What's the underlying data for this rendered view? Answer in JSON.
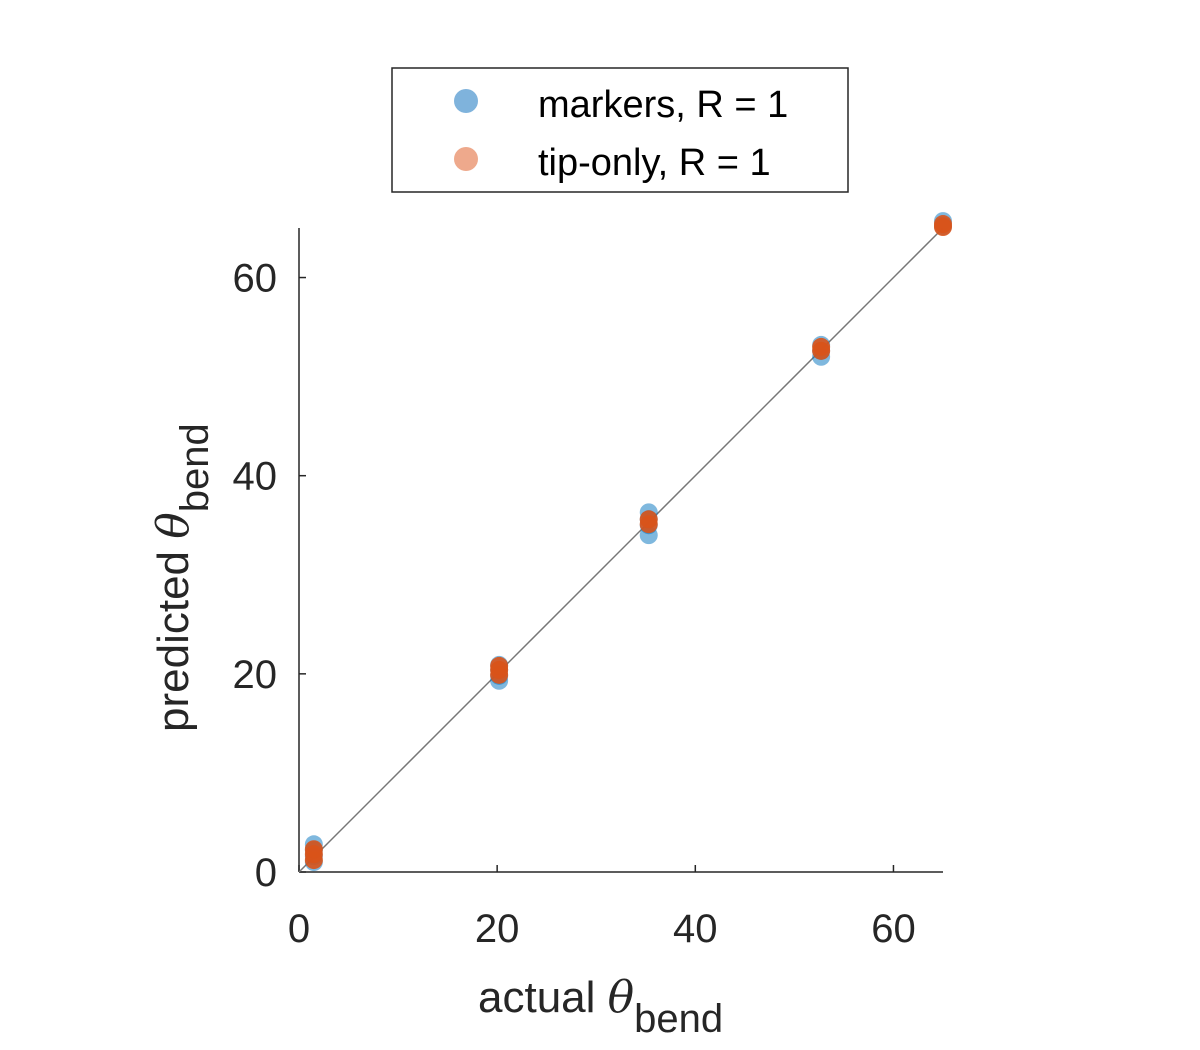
{
  "chart_data": {
    "type": "scatter",
    "xlabel": {
      "main": "actual ",
      "symbol": "θ",
      "subscript": "bend"
    },
    "ylabel": {
      "main": "predicted ",
      "symbol": "θ",
      "subscript": "bend"
    },
    "xlim": [
      0,
      65
    ],
    "ylim": [
      0,
      65
    ],
    "xticks": [
      0,
      20,
      40,
      60
    ],
    "yticks": [
      0,
      20,
      40,
      60
    ],
    "grid": false,
    "legend_position": "top",
    "reference_line": {
      "from": [
        0,
        0
      ],
      "to": [
        65,
        65
      ],
      "color": "#777777"
    },
    "series": [
      {
        "name": "markers, R = 1",
        "color": "#0072BD",
        "legend_color": "#7FB3DC",
        "points": [
          [
            1.5,
            1.0
          ],
          [
            1.5,
            1.6
          ],
          [
            1.5,
            2.2
          ],
          [
            1.5,
            2.8
          ],
          [
            20.2,
            19.3
          ],
          [
            20.2,
            19.8
          ],
          [
            20.2,
            20.4
          ],
          [
            20.2,
            20.9
          ],
          [
            35.3,
            34.0
          ],
          [
            35.3,
            35.0
          ],
          [
            35.3,
            35.6
          ],
          [
            35.3,
            36.3
          ],
          [
            52.7,
            52.0
          ],
          [
            52.7,
            52.6
          ],
          [
            52.7,
            53.2
          ],
          [
            65.0,
            65.2
          ],
          [
            65.0,
            65.7
          ]
        ]
      },
      {
        "name": "tip-only, R = 1",
        "color": "#D95319",
        "legend_color": "#EEA98C",
        "points": [
          [
            1.5,
            1.2
          ],
          [
            1.5,
            1.8
          ],
          [
            1.5,
            2.3
          ],
          [
            20.2,
            19.9
          ],
          [
            20.2,
            20.4
          ],
          [
            20.2,
            20.8
          ],
          [
            35.3,
            35.1
          ],
          [
            35.3,
            35.6
          ],
          [
            52.7,
            52.6
          ],
          [
            52.7,
            53.0
          ],
          [
            65.0,
            65.1
          ],
          [
            65.0,
            65.4
          ]
        ]
      }
    ]
  }
}
